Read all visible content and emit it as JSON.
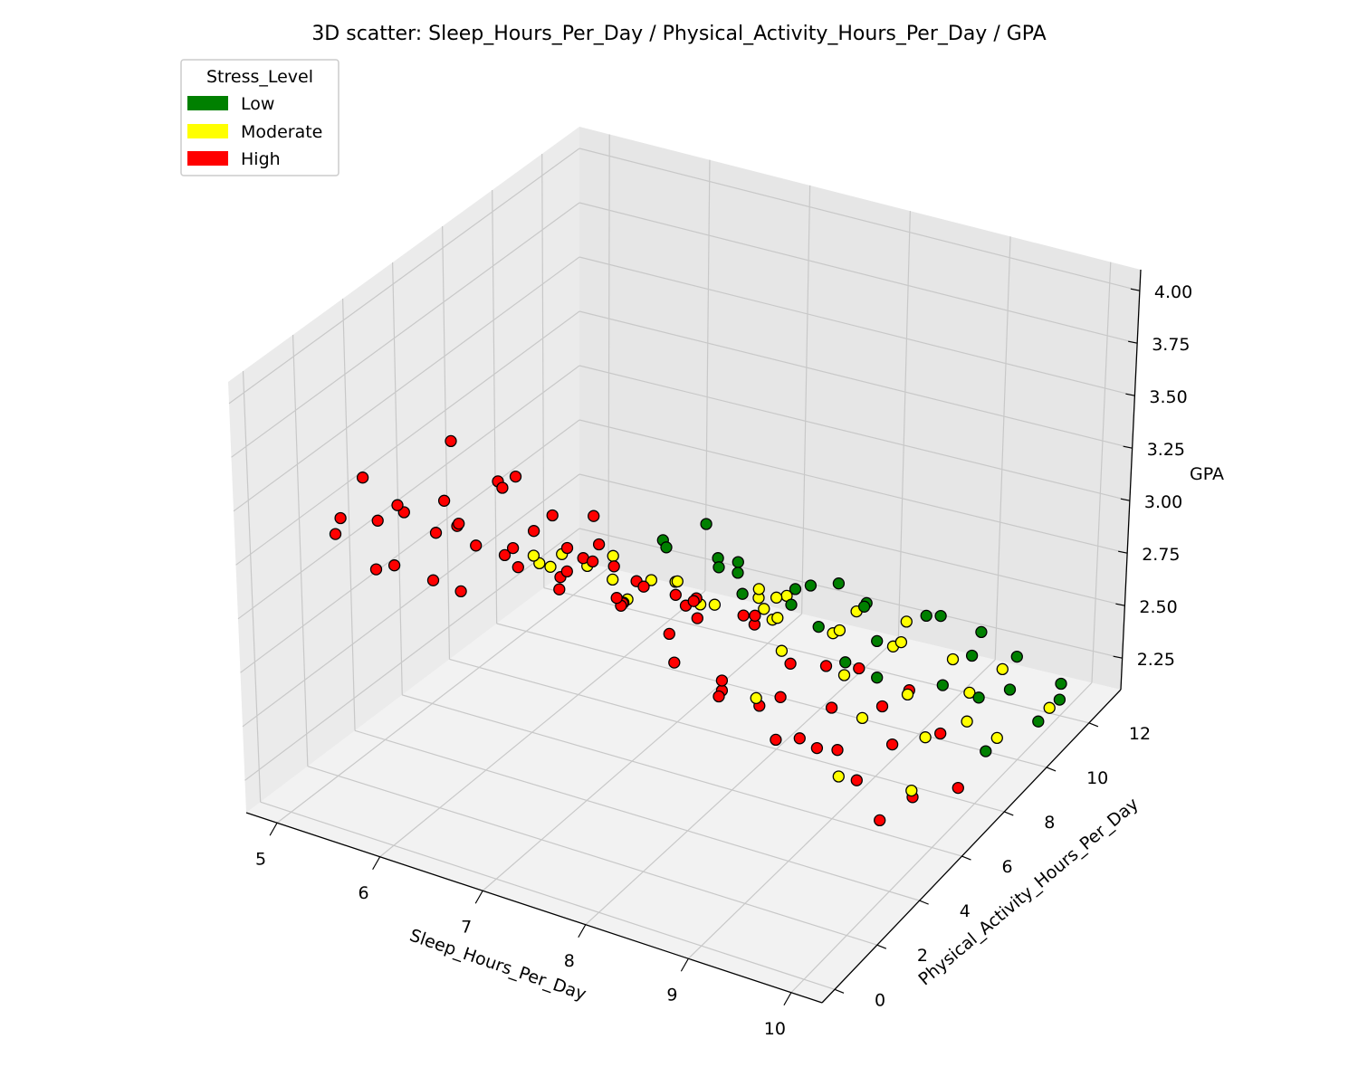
{
  "chart_data": {
    "type": "scatter",
    "title": "3D scatter: Sleep_Hours_Per_Day / Physical_Activity_Hours_Per_Day / GPA",
    "xlabel": "Sleep_Hours_Per_Day",
    "ylabel": "Physical_Activity_Hours_Per_Day",
    "zlabel": "GPA",
    "xlim": [
      4.7,
      10.3
    ],
    "ylim": [
      -0.6,
      13.5
    ],
    "zlim": [
      2.1,
      4.1
    ],
    "x_ticks": [
      5,
      6,
      7,
      8,
      9,
      10
    ],
    "y_ticks": [
      0,
      2,
      4,
      6,
      8,
      10,
      12
    ],
    "z_ticks": [
      "2.25",
      "2.50",
      "2.75",
      "3.00",
      "3.25",
      "3.50",
      "3.75",
      "4.00"
    ],
    "grid": true,
    "legend": {
      "title": "Stress_Level",
      "placement": "top-left",
      "entries": [
        {
          "label": "Low",
          "color": "#008000"
        },
        {
          "label": "Moderate",
          "color": "#ffff00"
        },
        {
          "label": "High",
          "color": "#ff0000"
        }
      ]
    },
    "series": [
      {
        "name": "High",
        "color": "#ff0000",
        "points": [
          [
            5.0,
            2.2,
            3.2
          ],
          [
            5.2,
            1.6,
            3.35
          ],
          [
            5.4,
            2.9,
            3.05
          ],
          [
            5.5,
            1.3,
            3.6
          ],
          [
            5.6,
            3.8,
            3.15
          ],
          [
            5.1,
            3.4,
            2.95
          ],
          [
            5.7,
            2.1,
            3.4
          ],
          [
            5.8,
            4.6,
            3.05
          ],
          [
            5.3,
            4.9,
            2.8
          ],
          [
            5.9,
            1.0,
            3.55
          ],
          [
            6.0,
            3.0,
            3.3
          ],
          [
            6.1,
            2.4,
            3.75
          ],
          [
            6.2,
            4.1,
            3.1
          ],
          [
            6.0,
            5.5,
            2.9
          ],
          [
            6.3,
            1.8,
            3.45
          ],
          [
            6.4,
            3.6,
            3.2
          ],
          [
            6.5,
            2.6,
            3.6
          ],
          [
            6.6,
            5.0,
            3.0
          ],
          [
            6.3,
            6.0,
            2.85
          ],
          [
            6.7,
            3.2,
            3.35
          ],
          [
            6.8,
            1.5,
            3.7
          ],
          [
            6.9,
            4.4,
            3.15
          ],
          [
            7.0,
            2.7,
            3.5
          ],
          [
            7.1,
            5.8,
            2.95
          ],
          [
            7.2,
            3.5,
            3.25
          ],
          [
            6.8,
            6.5,
            2.75
          ],
          [
            7.3,
            2.0,
            3.45
          ],
          [
            7.4,
            4.8,
            3.05
          ],
          [
            7.5,
            3.1,
            3.3
          ],
          [
            7.6,
            6.2,
            2.9
          ],
          [
            7.7,
            2.5,
            3.2
          ],
          [
            7.8,
            5.2,
            3.0
          ],
          [
            7.9,
            3.9,
            2.85
          ],
          [
            8.0,
            7.0,
            2.8
          ],
          [
            8.1,
            2.8,
            3.1
          ],
          [
            8.2,
            5.6,
            2.95
          ],
          [
            8.3,
            4.2,
            2.75
          ],
          [
            8.4,
            6.8,
            2.65
          ],
          [
            8.5,
            3.3,
            2.9
          ],
          [
            8.6,
            7.5,
            2.6
          ],
          [
            8.7,
            5.0,
            2.7
          ],
          [
            8.8,
            3.6,
            2.8
          ],
          [
            8.9,
            6.4,
            2.55
          ],
          [
            9.0,
            4.5,
            2.6
          ],
          [
            9.1,
            7.8,
            2.45
          ],
          [
            9.2,
            5.3,
            2.5
          ],
          [
            9.3,
            3.9,
            2.65
          ],
          [
            9.4,
            6.9,
            2.4
          ],
          [
            9.5,
            4.8,
            2.45
          ],
          [
            9.6,
            8.2,
            2.35
          ],
          [
            5.5,
            5.2,
            2.75
          ],
          [
            6.1,
            6.8,
            2.7
          ],
          [
            6.6,
            7.4,
            2.65
          ],
          [
            7.2,
            8.0,
            2.6
          ],
          [
            7.0,
            1.2,
            3.8
          ],
          [
            6.4,
            0.8,
            3.65
          ],
          [
            5.8,
            0.6,
            3.5
          ],
          [
            7.7,
            1.6,
            3.55
          ],
          [
            8.3,
            2.2,
            3.35
          ],
          [
            8.0,
            1.0,
            3.4
          ],
          [
            8.6,
            9.0,
            2.45
          ],
          [
            9.0,
            9.5,
            2.35
          ],
          [
            7.5,
            9.2,
            2.5
          ],
          [
            6.9,
            8.8,
            2.55
          ],
          [
            9.8,
            6.0,
            2.3
          ],
          [
            9.9,
            4.0,
            2.4
          ],
          [
            10.0,
            7.2,
            2.25
          ],
          [
            8.8,
            1.8,
            3.0
          ],
          [
            9.2,
            2.5,
            2.8
          ],
          [
            7.1,
            4.0,
            3.4
          ]
        ]
      },
      {
        "name": "Moderate",
        "color": "#ffff00",
        "points": [
          [
            6.5,
            8.0,
            2.6
          ],
          [
            7.0,
            9.0,
            2.55
          ],
          [
            7.5,
            10.0,
            2.45
          ],
          [
            8.0,
            10.5,
            2.4
          ],
          [
            8.5,
            11.0,
            2.35
          ],
          [
            9.0,
            11.5,
            2.3
          ],
          [
            9.5,
            10.0,
            2.35
          ],
          [
            10.0,
            9.0,
            2.3
          ],
          [
            6.8,
            5.0,
            3.05
          ],
          [
            7.2,
            6.0,
            2.95
          ],
          [
            7.6,
            7.0,
            2.8
          ],
          [
            8.0,
            8.0,
            2.7
          ],
          [
            8.4,
            9.0,
            2.6
          ],
          [
            8.8,
            10.0,
            2.5
          ],
          [
            9.2,
            8.5,
            2.45
          ],
          [
            9.6,
            7.5,
            2.4
          ],
          [
            6.2,
            6.5,
            2.9
          ],
          [
            5.8,
            7.0,
            2.8
          ],
          [
            5.5,
            8.5,
            2.6
          ],
          [
            6.0,
            9.5,
            2.5
          ],
          [
            7.3,
            11.5,
            2.4
          ],
          [
            7.9,
            12.0,
            2.35
          ],
          [
            8.3,
            12.5,
            2.3
          ],
          [
            9.4,
            12.0,
            2.25
          ],
          [
            10.1,
            11.0,
            2.25
          ],
          [
            7.4,
            3.5,
            3.3
          ],
          [
            7.8,
            4.5,
            3.15
          ],
          [
            8.2,
            6.5,
            2.9
          ],
          [
            8.6,
            5.5,
            2.85
          ],
          [
            9.0,
            6.5,
            2.7
          ],
          [
            9.4,
            5.5,
            2.65
          ],
          [
            9.8,
            8.5,
            2.4
          ],
          [
            6.4,
            10.5,
            2.45
          ],
          [
            6.9,
            12.0,
            2.3
          ],
          [
            5.3,
            9.8,
            2.45
          ],
          [
            8.9,
            3.0,
            2.9
          ],
          [
            9.6,
            3.5,
            2.6
          ],
          [
            10.0,
            5.0,
            2.45
          ],
          [
            7.7,
            8.5,
            2.75
          ],
          [
            8.1,
            7.5,
            2.85
          ]
        ]
      },
      {
        "name": "Low",
        "color": "#008000",
        "points": [
          [
            8.0,
            12.0,
            2.4
          ],
          [
            8.5,
            12.5,
            2.35
          ],
          [
            9.0,
            12.8,
            2.3
          ],
          [
            9.5,
            12.2,
            2.3
          ],
          [
            10.0,
            12.0,
            2.25
          ],
          [
            10.2,
            11.0,
            2.3
          ],
          [
            9.8,
            10.5,
            2.35
          ],
          [
            9.3,
            11.0,
            2.4
          ],
          [
            8.8,
            11.8,
            2.45
          ],
          [
            8.2,
            11.0,
            2.5
          ],
          [
            7.6,
            12.5,
            2.4
          ],
          [
            7.2,
            13.0,
            2.3
          ],
          [
            6.8,
            11.5,
            2.45
          ],
          [
            7.0,
            9.8,
            2.65
          ],
          [
            7.8,
            9.5,
            2.6
          ],
          [
            8.6,
            9.8,
            2.5
          ],
          [
            9.4,
            9.2,
            2.45
          ],
          [
            10.1,
            8.0,
            2.35
          ],
          [
            9.0,
            8.0,
            2.55
          ],
          [
            8.3,
            8.5,
            2.65
          ],
          [
            6.5,
            12.8,
            2.35
          ],
          [
            6.0,
            11.8,
            2.45
          ],
          [
            5.8,
            12.5,
            2.4
          ],
          [
            7.4,
            7.5,
            3.1
          ],
          [
            8.1,
            6.0,
            3.0
          ],
          [
            8.9,
            7.0,
            2.7
          ],
          [
            9.7,
            9.5,
            2.4
          ],
          [
            10.2,
            10.0,
            2.3
          ],
          [
            6.2,
            13.2,
            2.3
          ],
          [
            7.5,
            11.0,
            2.5
          ]
        ]
      }
    ]
  }
}
